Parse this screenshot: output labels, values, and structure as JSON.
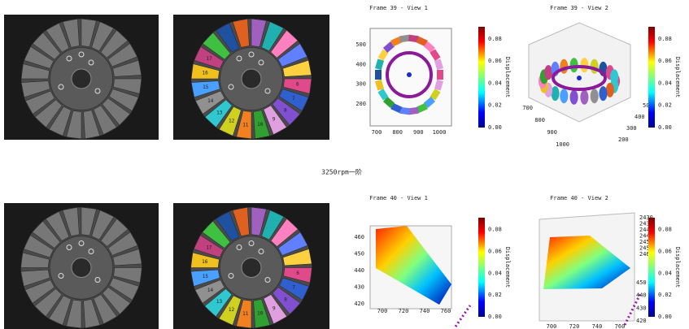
{
  "caption": "3250rpm一阶",
  "rows": [
    {
      "segments": [
        "1",
        "2",
        "3",
        "4",
        "5",
        "6",
        "7",
        "8",
        "9",
        "10",
        "11",
        "12",
        "13",
        "14",
        "15",
        "16",
        "17"
      ],
      "plots": [
        {
          "title": "Frame 39 - View 1",
          "axes": [
            [
              "700",
              "800",
              "900",
              "1000"
            ],
            [
              "200",
              "300",
              "400",
              "500"
            ]
          ],
          "cbar_ticks": [
            "0.00",
            "0.02",
            "0.04",
            "0.06",
            "0.08"
          ],
          "cbar_label": "Displacement"
        },
        {
          "title": "Frame 39 - View 2",
          "axes": [
            [
              "700",
              "800",
              "900",
              "1000"
            ],
            [
              "200",
              "300",
              "400",
              "500"
            ]
          ],
          "cbar_ticks": [
            "0.00",
            "0.02",
            "0.04",
            "0.06",
            "0.08"
          ],
          "cbar_label": "Displacement"
        }
      ]
    },
    {
      "segments": [
        "1",
        "2",
        "3",
        "4",
        "5",
        "6",
        "7",
        "8",
        "9",
        "10",
        "11",
        "12",
        "13",
        "14",
        "15",
        "16",
        "17"
      ],
      "plots": [
        {
          "title": "Frame 40 - View 1",
          "axes": [
            [
              "700",
              "720",
              "740",
              "760"
            ],
            [
              "420",
              "430",
              "440",
              "450",
              "460"
            ]
          ],
          "cbar_ticks": [
            "0.00",
            "0.02",
            "0.04",
            "0.06",
            "0.08"
          ],
          "cbar_label": "Displacement"
        },
        {
          "title": "Frame 40 - View 2",
          "axes": [
            [
              "700",
              "720",
              "740",
              "760"
            ],
            [
              "420",
              "430",
              "440",
              "450"
            ],
            [
              "2430",
              "2435",
              "2440",
              "2445",
              "2450",
              "2455",
              "2460"
            ]
          ],
          "cbar_ticks": [
            "0.00",
            "0.02",
            "0.04",
            "0.06",
            "0.08"
          ],
          "cbar_label": "Displacement"
        }
      ]
    }
  ]
}
